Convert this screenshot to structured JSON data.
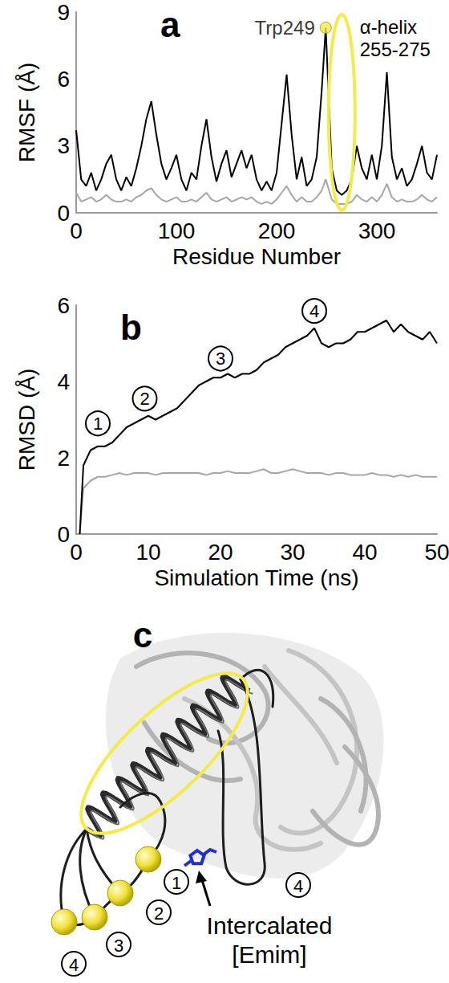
{
  "chart_data": [
    {
      "type": "line",
      "title": "a",
      "x_label": "Residue Number",
      "y_label": "RMSF (Å)",
      "xlim": [
        0,
        360
      ],
      "xticks": [
        0,
        100,
        200,
        300
      ],
      "ylim": [
        0,
        9
      ],
      "yticks": [
        0,
        3,
        6,
        9
      ],
      "grid": false,
      "x": [
        0,
        5,
        10,
        15,
        20,
        25,
        30,
        35,
        40,
        45,
        50,
        55,
        60,
        65,
        70,
        75,
        80,
        85,
        90,
        95,
        100,
        105,
        110,
        115,
        120,
        125,
        130,
        135,
        140,
        145,
        150,
        155,
        160,
        165,
        170,
        175,
        180,
        185,
        190,
        195,
        200,
        205,
        210,
        215,
        220,
        225,
        230,
        235,
        240,
        245,
        249,
        255,
        260,
        265,
        270,
        275,
        280,
        285,
        290,
        295,
        300,
        305,
        310,
        315,
        320,
        325,
        330,
        335,
        340,
        345,
        350,
        355,
        360
      ],
      "series": [
        {
          "color": "#000000",
          "values": [
            3.7,
            1.5,
            1.2,
            1.8,
            1.0,
            1.5,
            2.2,
            2.6,
            1.5,
            1.0,
            1.6,
            1.2,
            2.0,
            3.0,
            4.2,
            5.0,
            3.5,
            2.2,
            1.5,
            2.0,
            2.6,
            1.5,
            1.0,
            1.8,
            1.5,
            3.0,
            4.2,
            2.5,
            1.4,
            2.2,
            2.8,
            1.6,
            2.2,
            2.8,
            2.0,
            2.6,
            1.5,
            1.0,
            1.4,
            1.0,
            1.8,
            4.0,
            6.2,
            3.5,
            1.5,
            2.5,
            1.2,
            1.5,
            2.5,
            5.5,
            8.3,
            2.0,
            1.0,
            0.8,
            1.0,
            1.5,
            3.0,
            2.0,
            1.5,
            2.6,
            1.5,
            3.0,
            6.3,
            2.5,
            1.5,
            2.0,
            1.2,
            1.5,
            2.2,
            3.0,
            1.8,
            1.5,
            2.6
          ]
        },
        {
          "color": "#a6a6a6",
          "values": [
            0.9,
            0.5,
            0.6,
            0.7,
            0.5,
            0.6,
            0.8,
            0.6,
            0.5,
            0.5,
            0.6,
            0.5,
            0.7,
            0.8,
            1.0,
            1.1,
            0.8,
            0.6,
            0.5,
            0.6,
            0.7,
            0.5,
            0.5,
            0.6,
            0.5,
            0.7,
            0.9,
            0.6,
            0.5,
            0.6,
            0.7,
            0.5,
            0.6,
            0.7,
            0.6,
            0.7,
            0.5,
            0.4,
            0.5,
            0.4,
            0.6,
            0.9,
            1.2,
            0.8,
            0.5,
            0.7,
            0.5,
            0.5,
            0.7,
            1.0,
            1.5,
            0.6,
            0.4,
            0.4,
            0.4,
            0.5,
            0.8,
            0.6,
            0.5,
            0.7,
            0.5,
            0.8,
            1.3,
            0.7,
            0.5,
            0.6,
            0.5,
            0.5,
            0.6,
            0.8,
            0.6,
            0.5,
            0.7
          ]
        }
      ],
      "annotations": [
        {
          "text": "Trp249",
          "x": 249,
          "y": 8.3,
          "marker": "circle",
          "color": "#f3ea4c"
        },
        {
          "text": "α-helix 255-275",
          "x": [
            255,
            275
          ],
          "color": "#f3ea4c"
        }
      ]
    },
    {
      "type": "line",
      "title": "b",
      "x_label": "Simulation Time (ns)",
      "y_label": "RMSD (Å)",
      "xlim": [
        0,
        50
      ],
      "xticks": [
        0,
        10,
        20,
        30,
        40,
        50
      ],
      "ylim": [
        0,
        6
      ],
      "yticks": [
        0,
        2,
        4,
        6
      ],
      "grid": false,
      "x": [
        0.5,
        1,
        2,
        3,
        4,
        5,
        6,
        7,
        8,
        9,
        10,
        11,
        12,
        13,
        14,
        15,
        16,
        17,
        18,
        19,
        20,
        21,
        22,
        23,
        24,
        25,
        26,
        27,
        28,
        29,
        30,
        31,
        32,
        33,
        34,
        35,
        36,
        37,
        38,
        39,
        40,
        41,
        42,
        43,
        44,
        45,
        46,
        47,
        48,
        49,
        50
      ],
      "series": [
        {
          "color": "#000000",
          "values": [
            0,
            1.8,
            2.2,
            2.3,
            2.3,
            2.4,
            2.6,
            2.8,
            2.9,
            3.0,
            3.1,
            3.0,
            3.1,
            3.2,
            3.3,
            3.5,
            3.7,
            3.9,
            4.0,
            4.1,
            4.1,
            4.2,
            4.1,
            4.2,
            4.2,
            4.3,
            4.5,
            4.6,
            4.7,
            4.9,
            5.0,
            5.1,
            5.2,
            5.4,
            5.0,
            4.9,
            5.0,
            5.0,
            5.1,
            5.3,
            5.3,
            5.4,
            5.5,
            5.6,
            5.3,
            5.5,
            5.3,
            5.2,
            5.1,
            5.3,
            5.0
          ]
        },
        {
          "color": "#a6a6a6",
          "values": [
            0,
            1.2,
            1.4,
            1.5,
            1.5,
            1.55,
            1.6,
            1.55,
            1.6,
            1.6,
            1.6,
            1.55,
            1.6,
            1.6,
            1.6,
            1.6,
            1.6,
            1.6,
            1.55,
            1.6,
            1.6,
            1.65,
            1.6,
            1.6,
            1.6,
            1.65,
            1.7,
            1.6,
            1.6,
            1.65,
            1.7,
            1.65,
            1.6,
            1.6,
            1.6,
            1.55,
            1.6,
            1.6,
            1.55,
            1.55,
            1.55,
            1.6,
            1.55,
            1.55,
            1.5,
            1.55,
            1.5,
            1.55,
            1.5,
            1.5,
            1.5
          ]
        }
      ],
      "annotations": [
        {
          "text": "1",
          "x": 3,
          "y": 2.9
        },
        {
          "text": "2",
          "x": 9.5,
          "y": 3.55
        },
        {
          "text": "3",
          "x": 20,
          "y": 4.6
        },
        {
          "text": "4",
          "x": 33,
          "y": 5.85
        }
      ]
    }
  ],
  "panel_c": {
    "title": "c",
    "markers": [
      "1",
      "2",
      "3",
      "4"
    ],
    "loop_marker": "4",
    "label": "Intercalated [Emim]"
  }
}
